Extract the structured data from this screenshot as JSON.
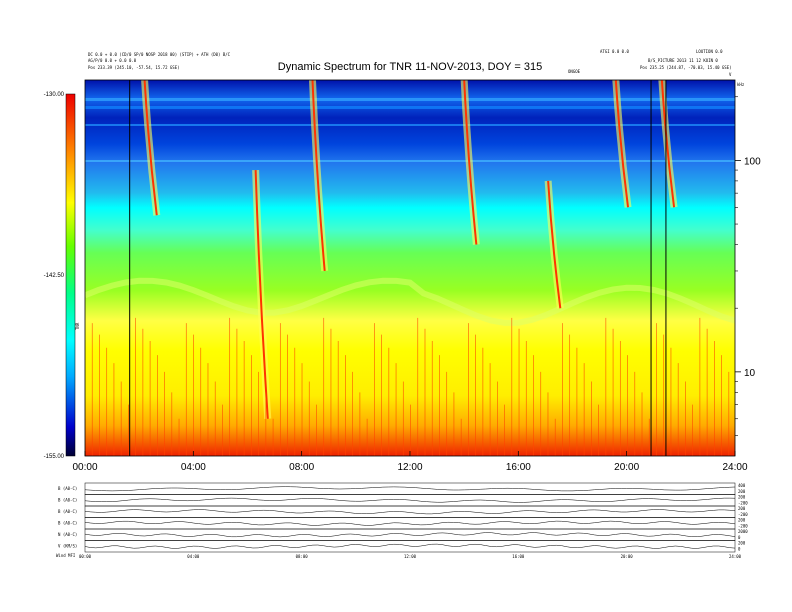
{
  "chart_data": [
    {
      "type": "heatmap",
      "title": "Dynamic Spectrum for TNR 11-NOV-2013, DOY = 315",
      "header_left_line1": "DC 0.0 + 0.0 (CD/0 SP/0 NOSP 2018 00) (STIP) + ATH (D0) B/C",
      "header_left_line2": "AG/P/0 0.0 + 0.0 0.0",
      "header_left_line3": "Pos      233.39 (245.10, -57.54, 15.72 GSE)",
      "header_right_line1": "ATGI 0.0 0.0",
      "header_right_line2": "LOUTION 0.0",
      "header_right_line3": "B/S_PICTURE  2013 11 12 KOIN 0",
      "header_right_line4": "Pos      235.25 (244.87, -70.03, 15.40 GSE)",
      "marker_label": "ONGOE",
      "corner_label": "V",
      "unit_label": "kHz",
      "colorbar_label": "TNR",
      "colorbar_ticks": [
        {
          "value": -130.0,
          "label": "-130.00"
        },
        {
          "value": -142.5,
          "label": "-142.50"
        },
        {
          "value": -155.0,
          "label": "-155.00"
        }
      ],
      "colorbar_range": [
        -155.0,
        -130.0
      ],
      "x_ticks": [
        "00:00",
        "04:00",
        "08:00",
        "12:00",
        "16:00",
        "20:00",
        "24:00"
      ],
      "x_range_hours": [
        0,
        24
      ],
      "y_scale": "log",
      "y_ticks": [
        {
          "value": 100,
          "label": "100"
        },
        {
          "value": 10,
          "label": "10"
        }
      ],
      "y_range_khz": [
        4,
        240
      ],
      "vertical_lines_hours": [
        1.65,
        20.9,
        21.45
      ],
      "bursts": [
        {
          "start_hour": 2.2,
          "freq_top": 240,
          "freq_bottom": 55
        },
        {
          "start_hour": 6.3,
          "freq_top": 90,
          "freq_bottom": 6
        },
        {
          "start_hour": 8.4,
          "freq_top": 240,
          "freq_bottom": 30
        },
        {
          "start_hour": 14.0,
          "freq_top": 240,
          "freq_bottom": 40
        },
        {
          "start_hour": 17.1,
          "freq_top": 80,
          "freq_bottom": 20
        },
        {
          "start_hour": 19.6,
          "freq_top": 240,
          "freq_bottom": 60
        },
        {
          "start_hour": 21.3,
          "freq_top": 240,
          "freq_bottom": 60
        }
      ]
    },
    {
      "type": "line",
      "panels": [
        {
          "label": "B (A0-C)",
          "right_ticks": [
            "400",
            "200"
          ]
        },
        {
          "label": "B (A0-C)",
          "right_ticks": [
            "200",
            "-200"
          ]
        },
        {
          "label": "B (A0-C)",
          "right_ticks": [
            "200",
            "-200"
          ]
        },
        {
          "label": "B (A0-C)",
          "right_ticks": [
            "200",
            "-200"
          ]
        },
        {
          "label": "N (A0-C)",
          "right_ticks": [
            "2000",
            "0"
          ]
        },
        {
          "label": "V (KM/S)",
          "right_ticks": [
            "200",
            "0"
          ]
        }
      ],
      "x_ticks": [
        "00:00",
        "04:00",
        "08:00",
        "12:00",
        "16:00",
        "20:00",
        "24:00"
      ],
      "footer_label": "Wind    MFI"
    }
  ]
}
